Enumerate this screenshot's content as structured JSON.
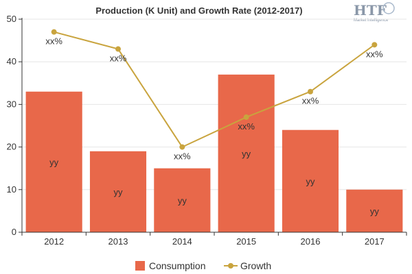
{
  "chart_data": {
    "title": "Production (K Unit) and Growth Rate (2012-2017)",
    "categories": [
      "2012",
      "2013",
      "2014",
      "2015",
      "2016",
      "2017"
    ],
    "ylim": [
      0,
      50
    ],
    "yticks": [
      0,
      10,
      20,
      30,
      40,
      50
    ],
    "grid": true,
    "legend_position": "bottom",
    "series": [
      {
        "name": "Consumption",
        "type": "bar",
        "color": "#e8684a",
        "values": [
          33,
          19,
          15,
          37,
          24,
          10
        ],
        "labels": [
          "yy",
          "yy",
          "yy",
          "yy",
          "yy",
          "yy"
        ]
      },
      {
        "name": "Growth",
        "type": "line",
        "color": "#c9a43e",
        "values": [
          47,
          43,
          20,
          27,
          33,
          44
        ],
        "labels": [
          "xx%",
          "xx%",
          "xx%",
          "xx%",
          "xx%",
          "xx%"
        ]
      }
    ]
  },
  "logo": {
    "text": "HTF",
    "subtitle": "Market Intelligence"
  }
}
